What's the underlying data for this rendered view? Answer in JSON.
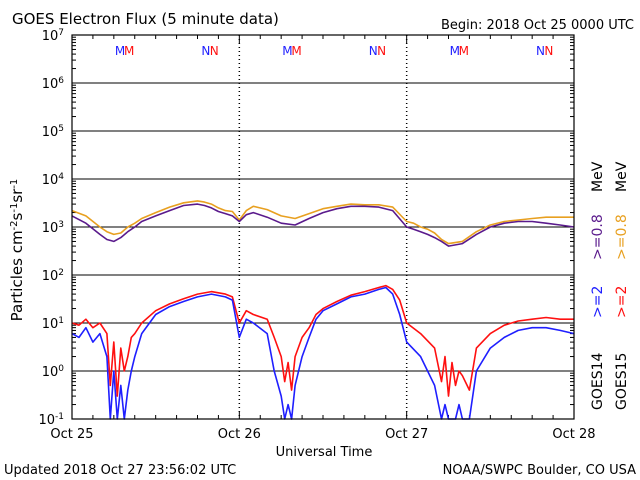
{
  "header": {
    "title": "GOES Electron Flux (5 minute data)",
    "begin": "Begin: 2018 Oct 25 0000 UTC"
  },
  "footer": {
    "updated": "Updated 2018 Oct 27 23:56:02 UTC",
    "credit": "NOAA/SWPC Boulder, CO USA"
  },
  "colors": {
    "goes14_high": "#1f1fff",
    "goes15_high": "#ff1010",
    "goes14_low": "#5a1a8c",
    "goes15_low": "#e8a020",
    "axes": "#000000"
  },
  "markers": {
    "labels": [
      "M",
      "M",
      "N",
      "N"
    ],
    "colors": [
      "#1f1fff",
      "#ff1010",
      "#1f1fff",
      "#ff1010"
    ],
    "days": [
      {
        "day": 0,
        "m_hours": [
          6.9,
          8.2
        ],
        "n_hours": [
          19.2,
          20.4
        ]
      },
      {
        "day": 1,
        "m_hours": [
          6.9,
          8.2
        ],
        "n_hours": [
          19.2,
          20.4
        ]
      },
      {
        "day": 2,
        "m_hours": [
          6.9,
          8.2
        ],
        "n_hours": [
          19.2,
          20.4
        ]
      }
    ]
  },
  "chart_data": {
    "type": "line",
    "title": "GOES Electron Flux (5 minute data)",
    "xlabel": "Universal Time",
    "ylabel": "Particles cm-2s-1sr-1",
    "x_ticks": [
      "Oct 25",
      "Oct 26",
      "Oct 27",
      "Oct 28"
    ],
    "xlim_hours": [
      0,
      72
    ],
    "yscale": "log",
    "ylim": [
      0.1,
      10000000
    ],
    "y_ticks": [
      {
        "base": "10",
        "exp": "-1"
      },
      {
        "base": "10",
        "exp": "0"
      },
      {
        "base": "10",
        "exp": "1"
      },
      {
        "base": "10",
        "exp": "2"
      },
      {
        "base": "10",
        "exp": "3"
      },
      {
        "base": "10",
        "exp": "4"
      },
      {
        "base": "10",
        "exp": "5"
      },
      {
        "base": "10",
        "exp": "6"
      },
      {
        "base": "10",
        "exp": "7"
      }
    ],
    "threshold": 1000,
    "grid": "horizontal at each decade",
    "legend": {
      "placement": "right",
      "goes14": "GOES14",
      "goes15": "GOES15",
      "high_label": ">=2",
      "low_label": ">=0.8",
      "unit": "MeV"
    },
    "series": [
      {
        "name": "GOES15 >=0.8 MeV",
        "color": "#e8a020",
        "hours": [
          0,
          2,
          4,
          5,
          6,
          7,
          8,
          9,
          10,
          12,
          14,
          16,
          18,
          19,
          20,
          21,
          22,
          23,
          24,
          25,
          26,
          28,
          30,
          32,
          34,
          36,
          38,
          40,
          42,
          44,
          46,
          48,
          49,
          50,
          51,
          52,
          53,
          54,
          56,
          58,
          60,
          62,
          64,
          66,
          68,
          70,
          72
        ],
        "values": [
          2200,
          1700,
          1000,
          800,
          700,
          750,
          1000,
          1200,
          1500,
          2000,
          2600,
          3200,
          3500,
          3300,
          3000,
          2500,
          2200,
          2100,
          1400,
          2200,
          2700,
          2300,
          1700,
          1500,
          1900,
          2400,
          2700,
          3000,
          2900,
          2900,
          2600,
          1300,
          1200,
          1000,
          900,
          750,
          550,
          450,
          500,
          800,
          1100,
          1300,
          1400,
          1500,
          1600,
          1600,
          1600
        ]
      },
      {
        "name": "GOES14 >=0.8 MeV",
        "color": "#5a1a8c",
        "hours": [
          0,
          2,
          4,
          5,
          6,
          7,
          8,
          9,
          10,
          12,
          14,
          16,
          18,
          19,
          20,
          21,
          22,
          23,
          24,
          25,
          26,
          28,
          30,
          32,
          34,
          36,
          38,
          40,
          42,
          44,
          46,
          48,
          49,
          50,
          51,
          52,
          53,
          54,
          56,
          58,
          60,
          62,
          64,
          66,
          68,
          70,
          72
        ],
        "values": [
          1700,
          1200,
          700,
          550,
          500,
          600,
          800,
          1000,
          1300,
          1700,
          2200,
          2800,
          3000,
          2800,
          2500,
          2100,
          1900,
          1700,
          1300,
          1800,
          2000,
          1600,
          1200,
          1100,
          1500,
          2000,
          2400,
          2700,
          2700,
          2600,
          2200,
          1000,
          900,
          800,
          700,
          600,
          500,
          400,
          450,
          700,
          1000,
          1200,
          1300,
          1300,
          1200,
          1100,
          1000
        ]
      },
      {
        "name": "GOES15 >=2 MeV",
        "color": "#ff1010",
        "hours": [
          0,
          1,
          2,
          3,
          4,
          5,
          5.5,
          6,
          6.5,
          7,
          7.5,
          8,
          8.5,
          9,
          10,
          12,
          14,
          16,
          18,
          20,
          22,
          23,
          24,
          25,
          26,
          28,
          29,
          30,
          30.5,
          31,
          31.5,
          32,
          33,
          34,
          35,
          36,
          38,
          40,
          42,
          44,
          45,
          46,
          47,
          48,
          50,
          52,
          53,
          53.5,
          54,
          54.5,
          55,
          55.5,
          56,
          57,
          58,
          60,
          62,
          64,
          66,
          68,
          70,
          72
        ],
        "values": [
          10,
          9,
          12,
          8,
          10,
          6,
          0.5,
          4,
          0.3,
          3,
          1,
          2,
          5,
          6,
          10,
          18,
          25,
          32,
          40,
          45,
          40,
          35,
          10,
          18,
          15,
          12,
          5,
          2,
          0.6,
          1.5,
          0.4,
          2,
          5,
          8,
          15,
          20,
          28,
          38,
          45,
          55,
          60,
          50,
          30,
          10,
          6,
          3,
          0.6,
          2,
          0.3,
          1.5,
          0.5,
          1,
          0.8,
          0.4,
          3,
          6,
          9,
          11,
          12,
          13,
          12,
          12
        ]
      },
      {
        "name": "GOES14 >=2 MeV",
        "color": "#1f1fff",
        "hours": [
          0,
          1,
          2,
          3,
          4,
          5,
          5.5,
          6,
          6.5,
          7,
          7.5,
          8,
          8.5,
          9,
          10,
          12,
          14,
          16,
          18,
          20,
          22,
          23,
          24,
          25,
          26,
          28,
          29,
          30,
          30.5,
          31,
          31.5,
          32,
          33,
          34,
          35,
          36,
          38,
          40,
          42,
          44,
          45,
          46,
          47,
          48,
          50,
          52,
          53,
          53.5,
          54,
          54.5,
          55,
          55.5,
          56,
          57,
          58,
          60,
          62,
          64,
          66,
          68,
          70,
          72
        ],
        "values": [
          6,
          5,
          8,
          4,
          6,
          2,
          0.1,
          1,
          0.1,
          0.5,
          0.1,
          0.4,
          1,
          2,
          6,
          15,
          22,
          28,
          35,
          40,
          35,
          30,
          5,
          12,
          10,
          6,
          1,
          0.3,
          0.1,
          0.2,
          0.1,
          0.5,
          2,
          5,
          12,
          18,
          25,
          35,
          40,
          50,
          55,
          40,
          15,
          4,
          2,
          0.5,
          0.1,
          0.2,
          0.1,
          0.1,
          0.1,
          0.2,
          0.1,
          0.1,
          1,
          3,
          5,
          7,
          8,
          8,
          7,
          6
        ]
      }
    ]
  }
}
